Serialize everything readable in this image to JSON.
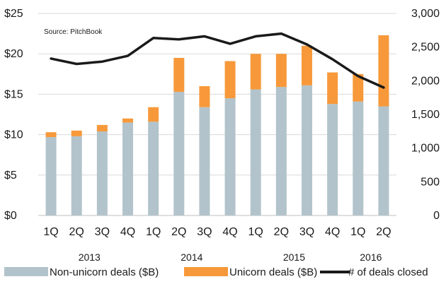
{
  "source": "Source: PitchBook",
  "colors": {
    "non_unicorn": "#b2c3cb",
    "unicorn": "#f7993a",
    "line": "#1a1a1a",
    "grid": "#d9d9d9"
  },
  "chart_data": {
    "type": "bar",
    "categories": [
      "1Q",
      "2Q",
      "3Q",
      "4Q",
      "1Q",
      "2Q",
      "3Q",
      "4Q",
      "1Q",
      "2Q",
      "3Q",
      "4Q",
      "1Q",
      "2Q"
    ],
    "years": [
      {
        "label": "2013",
        "center_index": 1.5
      },
      {
        "label": "2014",
        "center_index": 5.5
      },
      {
        "label": "2015",
        "center_index": 9.5
      },
      {
        "label": "2016",
        "center_index": 12.5
      }
    ],
    "stacked": true,
    "series": [
      {
        "name": "Non-unicorn deals ($B)",
        "axis": "left",
        "values": [
          9.7,
          9.8,
          10.4,
          11.5,
          11.6,
          15.3,
          13.4,
          14.5,
          15.6,
          15.9,
          16.1,
          13.8,
          14.1,
          13.5
        ]
      },
      {
        "name": "Unicorn deals ($B)",
        "axis": "left",
        "values": [
          0.6,
          0.7,
          0.8,
          0.5,
          1.8,
          4.2,
          2.6,
          4.6,
          4.4,
          4.1,
          4.9,
          3.9,
          3.4,
          8.8
        ]
      },
      {
        "name": "# of deals closed",
        "type": "line",
        "axis": "right",
        "values": [
          2330,
          2250,
          2285,
          2370,
          2635,
          2615,
          2660,
          2550,
          2660,
          2700,
          2540,
          2320,
          2070,
          1900
        ]
      }
    ],
    "left_axis": {
      "ylim": [
        0,
        25
      ],
      "ticks": [
        0,
        5,
        10,
        15,
        20,
        25
      ],
      "tick_labels": [
        "$0",
        "$5",
        "$10",
        "$15",
        "$20",
        "$25"
      ]
    },
    "right_axis": {
      "ylim": [
        0,
        3000
      ],
      "ticks": [
        0,
        500,
        1000,
        1500,
        2000,
        2500,
        3000
      ],
      "tick_labels": [
        "0",
        "500",
        "1,000",
        "1,500",
        "2,000",
        "2,500",
        "3,000"
      ]
    },
    "grid": true,
    "legend": {
      "position": "bottom",
      "items": [
        {
          "label": "Non-unicorn deals ($B)",
          "kind": "box",
          "color_key": "non_unicorn"
        },
        {
          "label": "Unicorn deals ($B)",
          "kind": "box",
          "color_key": "unicorn"
        },
        {
          "label": "# of deals closed",
          "kind": "line",
          "color_key": "line"
        }
      ]
    }
  }
}
